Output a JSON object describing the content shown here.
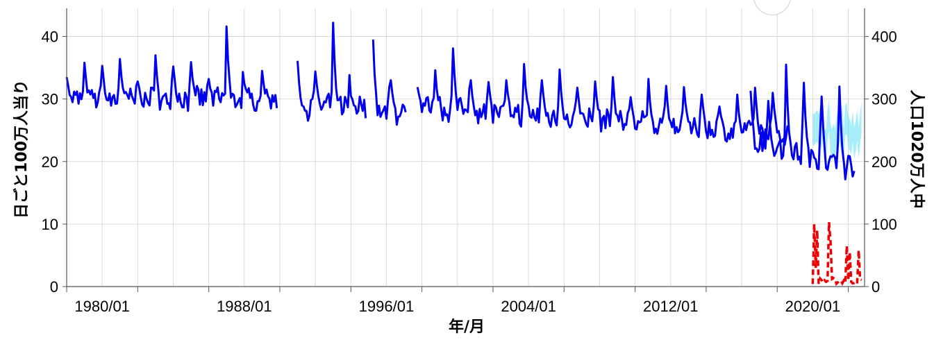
{
  "chart_data": {
    "type": "line",
    "xlabel": "年/月",
    "ylabel_left": "日ごと100万人当り",
    "ylabel_right": "人口1020万人中",
    "x_ticks": [
      "1980/01",
      "1988/01",
      "1996/01",
      "2004/01",
      "2012/01",
      "2020/01"
    ],
    "x_range": [
      "1978/01",
      "2022/12"
    ],
    "y_left_ticks": [
      0,
      10,
      20,
      30,
      40
    ],
    "y_left_range": [
      0,
      44.5
    ],
    "y_right_ticks": [
      0,
      100,
      200,
      300,
      400
    ],
    "y_right_range": [
      0,
      445
    ],
    "grid": true,
    "colors": {
      "main": "#0000ee",
      "band": "#5fe0f5",
      "covid": "#ee0000"
    },
    "series": [
      {
        "axis": "left",
        "color": "#0000ee",
        "segments": [
          {
            "start": "1978/01",
            "baseline": 30.0,
            "peaks": [
              33.5,
              35.8,
              35.3,
              36.4,
              32.8,
              37.0,
              35.2,
              35.9,
              33.2,
              41.6,
              32.5,
              34.5
            ]
          },
          {
            "start": "1991/01",
            "baseline": 28.8,
            "peaks": [
              36.1,
              34.4,
              42.2,
              30.5
            ]
          },
          {
            "start": "1995/04",
            "baseline": 27.9,
            "peaks": [
              39.5,
              33.0
            ]
          },
          {
            "start": "1997/10",
            "baseline": 28.8,
            "peaks": [
              31.9,
              34.6,
              38.1,
              33.0,
              32.7,
              33.0,
              35.6,
              33.0,
              34.7,
              31.8,
              32.8,
              33.5,
              30.3,
              33.2,
              32.1,
              31.9,
              30.7,
              28.8,
              30.7,
              31.8,
              31.0
            ]
          },
          {
            "start": "2016/07",
            "baseline": 23.2,
            "peaks": [
              31.3,
              29.7,
              35.5,
              32.6,
              30.4,
              32.0
            ]
          }
        ]
      },
      {
        "axis": "left",
        "color": "#5fe0f5",
        "name": "",
        "from": "2020/01",
        "to": "2022/10"
      },
      {
        "axis": "right",
        "color": "#ee0000",
        "dashed": true,
        "from": "2020/01",
        "to": "2022/10",
        "peaks": [
          100,
          103,
          65,
          55,
          58
        ]
      }
    ]
  }
}
